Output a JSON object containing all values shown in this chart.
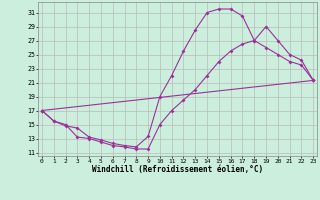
{
  "xlabel": "Windchill (Refroidissement éolien,°C)",
  "bg_color": "#cceedd",
  "plot_bg_color": "#cceedd",
  "line_color": "#993399",
  "grid_color": "#bbbbbb",
  "x_ticks": [
    0,
    1,
    2,
    3,
    4,
    5,
    6,
    7,
    8,
    9,
    10,
    11,
    12,
    13,
    14,
    15,
    16,
    17,
    18,
    19,
    20,
    21,
    22,
    23
  ],
  "y_ticks": [
    11,
    13,
    15,
    17,
    19,
    21,
    23,
    25,
    27,
    29,
    31
  ],
  "xlim": [
    -0.3,
    23.3
  ],
  "ylim": [
    10.5,
    32.5
  ],
  "line1_x": [
    0,
    1,
    2,
    3,
    4,
    5,
    6,
    7,
    8,
    9,
    10,
    11,
    12,
    13,
    14,
    15,
    16,
    17,
    18,
    19,
    20,
    21,
    22,
    23
  ],
  "line1_y": [
    17,
    15.5,
    14.8,
    14.5,
    13.2,
    12.8,
    12.3,
    12.0,
    11.8,
    13.3,
    19.0,
    22.0,
    25.5,
    28.5,
    31.0,
    31.5,
    31.5,
    30.5,
    27.0,
    26.0,
    25.0,
    24.0,
    23.5,
    21.3
  ],
  "line2_x": [
    0,
    1,
    2,
    3,
    4,
    5,
    6,
    7,
    8,
    9,
    10,
    11,
    12,
    13,
    14,
    15,
    16,
    17,
    18,
    19,
    20,
    21,
    22,
    23
  ],
  "line2_y": [
    17,
    15.5,
    15.0,
    13.2,
    13.0,
    12.5,
    12.0,
    11.8,
    11.5,
    11.5,
    15.0,
    17.0,
    18.5,
    20.0,
    22.0,
    24.0,
    25.5,
    26.5,
    27.0,
    29.0,
    27.0,
    25.0,
    24.2,
    21.3
  ],
  "line3_x": [
    0,
    23
  ],
  "line3_y": [
    17,
    21.3
  ],
  "tick_fontsize": 4.5,
  "xlabel_fontsize": 5.5
}
